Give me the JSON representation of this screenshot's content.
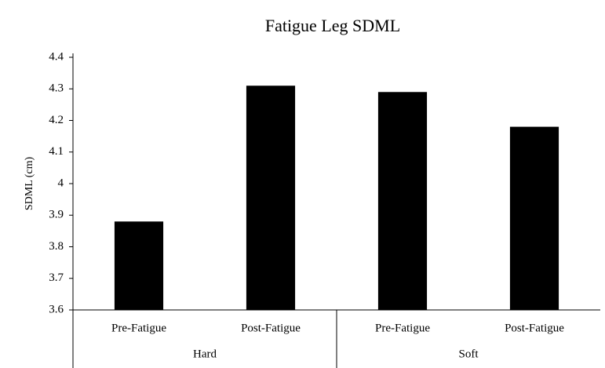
{
  "chart_data": {
    "type": "bar",
    "title": "Fatigue Leg SDML",
    "y_label": "SDML (cm)",
    "categories": [
      "Pre-Fatigue",
      "Post-Fatigue",
      "Pre-Fatigue",
      "Post-Fatigue"
    ],
    "groups": [
      "Hard",
      "Soft"
    ],
    "values": [
      3.88,
      4.31,
      4.29,
      4.18
    ],
    "color": "#000000",
    "ylim": [
      3.6,
      4.4
    ],
    "yticks": [
      3.6,
      3.7,
      3.8,
      3.9,
      4,
      4.1,
      4.2,
      4.3,
      4.4
    ],
    "grid": false
  }
}
